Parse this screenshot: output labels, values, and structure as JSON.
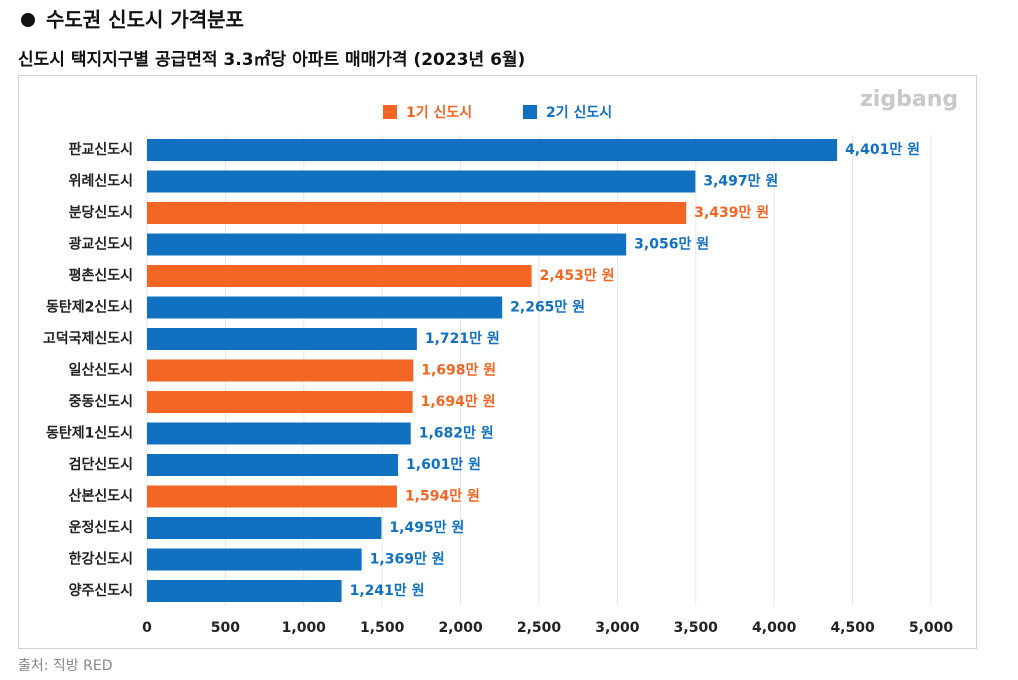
{
  "chart_data": {
    "type": "bar",
    "title": "수도권 신도시 가격분포",
    "subtitle": "신도시 택지지구별 공급면적 3.3㎡당 아파트 매매가격 (2023년 6월)",
    "watermark": "zigbang",
    "source": "출처: 직방 RED",
    "orientation": "horizontal",
    "categories": [
      "판교신도시",
      "위례신도시",
      "분당신도시",
      "광교신도시",
      "평촌신도시",
      "동탄제2신도시",
      "고덕국제신도시",
      "일산신도시",
      "중동신도시",
      "동탄제1신도시",
      "검단신도시",
      "산본신도시",
      "운정신도시",
      "한강신도시",
      "양주신도시"
    ],
    "series": [
      {
        "name": "1기 신도시",
        "color": "#f26522",
        "values": [
          null,
          null,
          3439,
          null,
          2453,
          null,
          null,
          1698,
          1694,
          null,
          null,
          1594,
          null,
          null,
          null
        ],
        "value_labels": [
          null,
          null,
          "3,439만 원",
          null,
          "2,453만 원",
          null,
          null,
          "1,698만 원",
          "1,694만 원",
          null,
          null,
          "1,594만 원",
          null,
          null,
          null
        ]
      },
      {
        "name": "2기 신도시",
        "color": "#1170c0",
        "values": [
          4401,
          3497,
          null,
          3056,
          null,
          2265,
          1721,
          null,
          null,
          1682,
          1601,
          null,
          1495,
          1369,
          1241
        ],
        "value_labels": [
          "4,401만 원",
          "3,497만 원",
          null,
          "3,056만 원",
          null,
          "2,265만 원",
          "1,721만 원",
          null,
          null,
          "1,682만 원",
          "1,601만 원",
          null,
          "1,495만 원",
          "1,369만 원",
          "1,241만 원"
        ]
      }
    ],
    "xlim": [
      0,
      5000
    ],
    "xticks": [
      0,
      500,
      {
        "value": 1000,
        "label": "1,000"
      },
      {
        "value": 1500,
        "label": "1,500"
      },
      {
        "value": 2000,
        "label": "2,000"
      },
      {
        "value": 2500,
        "label": "2,500"
      },
      {
        "value": 3000,
        "label": "3,000"
      },
      {
        "value": 3500,
        "label": "3,500"
      },
      {
        "value": 4000,
        "label": "4,000"
      },
      {
        "value": 4500,
        "label": "4,500"
      },
      {
        "value": 5000,
        "label": "5,000"
      }
    ],
    "grid": true,
    "legend": "top"
  }
}
